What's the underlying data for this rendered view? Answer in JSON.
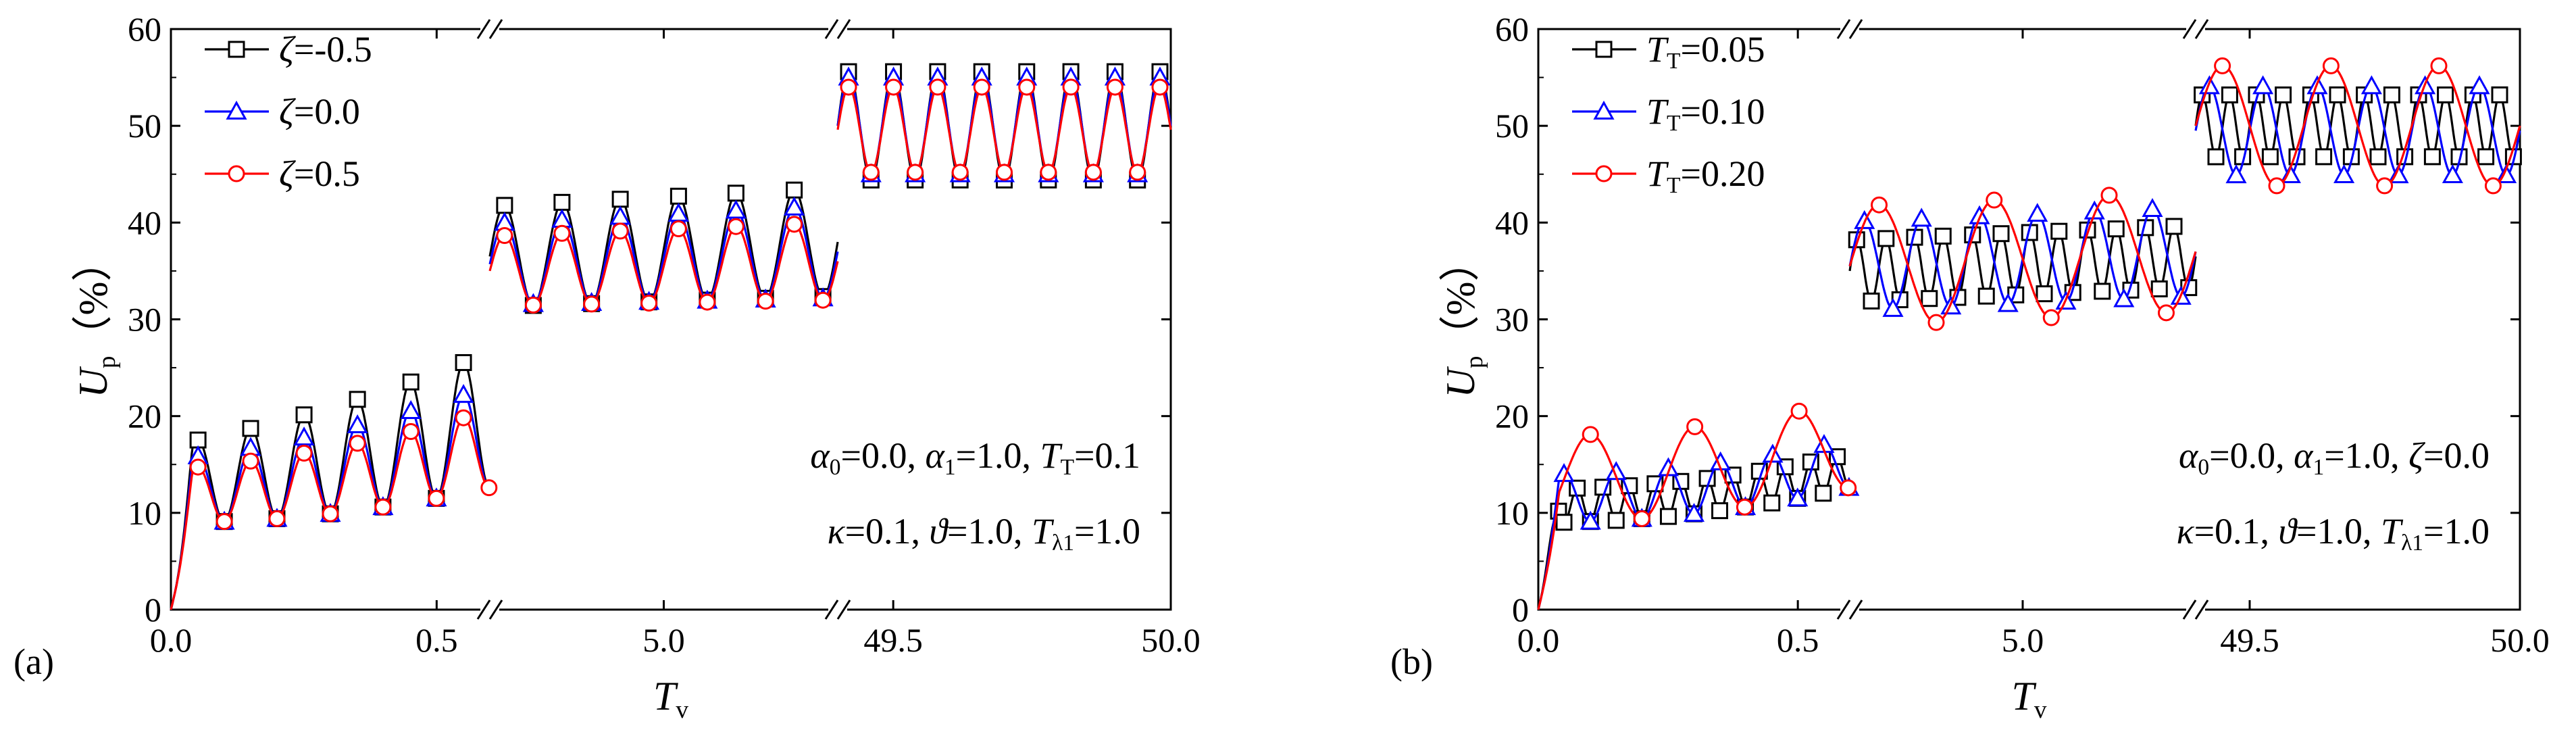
{
  "chart_data": [
    {
      "type": "line",
      "panel_label": "(a)",
      "xlabel_main": "T",
      "xlabel_sub": "v",
      "ylabel_main": "U",
      "ylabel_sub": "p",
      "ylabel_unit": "（%）",
      "ylim": [
        0,
        60
      ],
      "yticks": [
        "0",
        "10",
        "20",
        "30",
        "40",
        "50",
        "60"
      ],
      "grid": false,
      "legend_position": "top-left",
      "x_segments": [
        {
          "range": [
            0.0,
            0.6
          ],
          "ticks": [
            {
              "v": 0.0,
              "label": "0.0"
            },
            {
              "v": 0.5,
              "label": "0.5"
            }
          ]
        },
        {
          "range": [
            4.4,
            5.6
          ],
          "ticks": [
            {
              "v": 5.0,
              "label": "5.0"
            }
          ]
        },
        {
          "range": [
            49.4,
            50.0
          ],
          "ticks": [
            {
              "v": 49.5,
              "label": "49.5"
            },
            {
              "v": 50.0,
              "label": "50.0"
            }
          ]
        }
      ],
      "annotations": [
        {
          "line": 1,
          "parts": [
            [
              "α",
              "0",
              "=0.0, "
            ],
            [
              "α",
              "1",
              "=1.0,  "
            ],
            [
              "T",
              "T",
              "=0.1"
            ]
          ]
        },
        {
          "line": 2,
          "parts": [
            [
              "κ",
              "",
              "=0.1,  "
            ],
            [
              "ϑ",
              "",
              "=1.0,  "
            ],
            [
              "T",
              "λ1",
              "=1.0"
            ]
          ]
        }
      ],
      "series": [
        {
          "sym": "ζ",
          "sub": "",
          "label": "=-0.5",
          "color": "#000000",
          "marker": "square",
          "segments": [
            {
              "base": [
                0,
                0.6
              ],
              "amp": [
                8,
                14
              ],
              "period": 0.1
            },
            {
              "base": [
                36.5,
                38
              ],
              "amp": [
                5.2,
                5.6
              ],
              "period": 0.2
            },
            {
              "base": [
                50,
                50
              ],
              "amp": [
                5.6,
                5.6
              ],
              "period": 0.08
            }
          ]
        },
        {
          "sym": "ζ",
          "sub": "",
          "label": "=0.0",
          "color": "#0000ff",
          "marker": "triangle",
          "segments": [
            {
              "base": [
                0,
                0.6
              ],
              "amp": [
                6.5,
                10.5
              ],
              "period": 0.1
            },
            {
              "base": [
                35.7,
                37
              ],
              "amp": [
                4.2,
                4.8
              ],
              "period": 0.2
            },
            {
              "base": [
                50,
                50
              ],
              "amp": [
                5.0,
                5.0
              ],
              "period": 0.08
            }
          ]
        },
        {
          "sym": "ζ",
          "sub": "",
          "label": "=0.5",
          "color": "#ff0000",
          "marker": "circle",
          "segments": [
            {
              "base": [
                0,
                0.6
              ],
              "amp": [
                5.5,
                8
              ],
              "period": 0.1
            },
            {
              "base": [
                35,
                36
              ],
              "amp": [
                3.6,
                4.0
              ],
              "period": 0.2
            },
            {
              "base": [
                49.6,
                49.6
              ],
              "amp": [
                4.4,
                4.4
              ],
              "period": 0.08
            }
          ]
        }
      ]
    },
    {
      "type": "line",
      "panel_label": "(b)",
      "xlabel_main": "T",
      "xlabel_sub": "v",
      "ylabel_main": "U",
      "ylabel_sub": "p",
      "ylabel_unit": "（%）",
      "ylim": [
        0,
        60
      ],
      "yticks": [
        "0",
        "10",
        "20",
        "30",
        "40",
        "50",
        "60"
      ],
      "grid": false,
      "legend_position": "top-left",
      "x_segments": [
        {
          "range": [
            0.0,
            0.6
          ],
          "ticks": [
            {
              "v": 0.0,
              "label": "0.0"
            },
            {
              "v": 0.5,
              "label": "0.5"
            }
          ]
        },
        {
          "range": [
            4.4,
            5.6
          ],
          "ticks": [
            {
              "v": 5.0,
              "label": "5.0"
            }
          ]
        },
        {
          "range": [
            49.4,
            50.0
          ],
          "ticks": [
            {
              "v": 49.5,
              "label": "49.5"
            },
            {
              "v": 50.0,
              "label": "50.0"
            }
          ]
        }
      ],
      "annotations": [
        {
          "line": 1,
          "parts": [
            [
              "α",
              "0",
              "=0.0, "
            ],
            [
              "α",
              "1",
              "=1.0,  "
            ],
            [
              "ζ",
              "",
              "=0.0"
            ]
          ]
        },
        {
          "line": 2,
          "parts": [
            [
              "κ",
              "",
              "=0.1,  "
            ],
            [
              "ϑ",
              "",
              "=1.0,  "
            ],
            [
              "T",
              "λ1",
              "=1.0"
            ]
          ]
        }
      ],
      "series": [
        {
          "sym": "T",
          "sub": "T",
          "label": "=0.05",
          "color": "#000000",
          "marker": "square",
          "segments": [
            {
              "base": [
                0,
                0.6
              ],
              "amp": [
                3.5,
                3.5
              ],
              "period": 0.05
            },
            {
              "base": [
                35,
                36.5
              ],
              "amp": [
                3.2,
                3.2
              ],
              "period": 0.1
            },
            {
              "base": [
                50,
                50
              ],
              "amp": [
                3.2,
                3.2
              ],
              "period": 0.05
            }
          ]
        },
        {
          "sym": "T",
          "sub": "T",
          "label": "=0.10",
          "color": "#0000ff",
          "marker": "triangle",
          "segments": [
            {
              "base": [
                0,
                0.6
              ],
              "amp": [
                5,
                5
              ],
              "period": 0.1
            },
            {
              "base": [
                35.5,
                37
              ],
              "amp": [
                4.6,
                4.6
              ],
              "period": 0.2
            },
            {
              "base": [
                49.5,
                49.5
              ],
              "amp": [
                4.6,
                4.6
              ],
              "period": 0.1
            }
          ]
        },
        {
          "sym": "T",
          "sub": "T",
          "label": "=0.20",
          "color": "#ff0000",
          "marker": "circle",
          "segments": [
            {
              "base": [
                0,
                0.6
              ],
              "amp": [
                9,
                9
              ],
              "period": 0.2
            },
            {
              "base": [
                35.5,
                37
              ],
              "amp": [
                6.2,
                6.2
              ],
              "period": 0.4
            },
            {
              "base": [
                50,
                50
              ],
              "amp": [
                6.2,
                6.2
              ],
              "period": 0.2
            }
          ]
        }
      ]
    }
  ]
}
